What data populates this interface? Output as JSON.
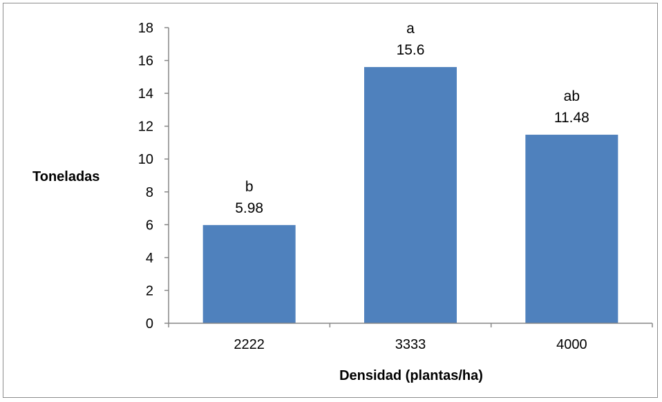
{
  "chart_data": {
    "type": "bar",
    "categories": [
      "2222",
      "3333",
      "4000"
    ],
    "values": [
      5.98,
      15.6,
      11.48
    ],
    "significance_letters": [
      "b",
      "a",
      "ab"
    ],
    "value_labels": [
      "5.98",
      "15.6",
      "11.48"
    ],
    "title": "",
    "xlabel": "Densidad (plantas/ha)",
    "ylabel": "Toneladas",
    "ylim": [
      0,
      18
    ],
    "yticks": [
      "0",
      "2",
      "4",
      "6",
      "8",
      "10",
      "12",
      "14",
      "16",
      "18"
    ],
    "grid": false,
    "legend": "none",
    "bar_color": "#4F81BD"
  }
}
